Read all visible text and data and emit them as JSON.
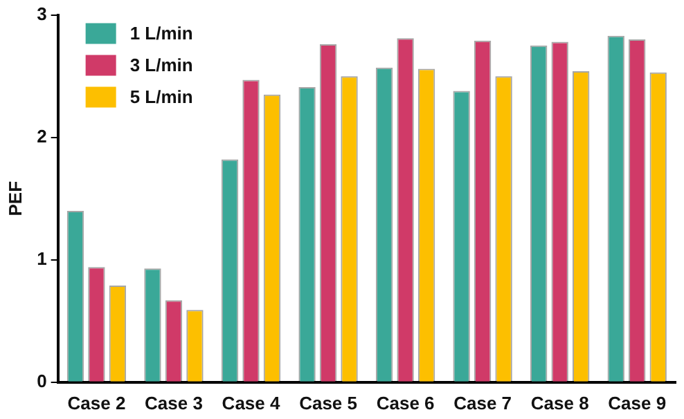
{
  "chart_data": {
    "type": "bar",
    "ylabel": "PEF",
    "categories": [
      "Case 2",
      "Case 3",
      "Case 4",
      "Case 5",
      "Case 6",
      "Case 7",
      "Case 8",
      "Case 9"
    ],
    "series": [
      {
        "name": "1 L/min",
        "color": "#3aa898",
        "values": [
          1.4,
          0.93,
          1.82,
          2.41,
          2.57,
          2.38,
          2.75,
          2.83
        ]
      },
      {
        "name": "3 L/min",
        "color": "#d03a68",
        "values": [
          0.94,
          0.67,
          2.47,
          2.76,
          2.81,
          2.79,
          2.78,
          2.8
        ]
      },
      {
        "name": "5 L/min",
        "color": "#fdbf00",
        "values": [
          0.79,
          0.59,
          2.35,
          2.5,
          2.56,
          2.5,
          2.54,
          2.53
        ]
      }
    ],
    "ylim": [
      0,
      3
    ],
    "yticks": [
      0,
      1,
      2,
      3
    ],
    "grid": false,
    "legend": "top left"
  }
}
